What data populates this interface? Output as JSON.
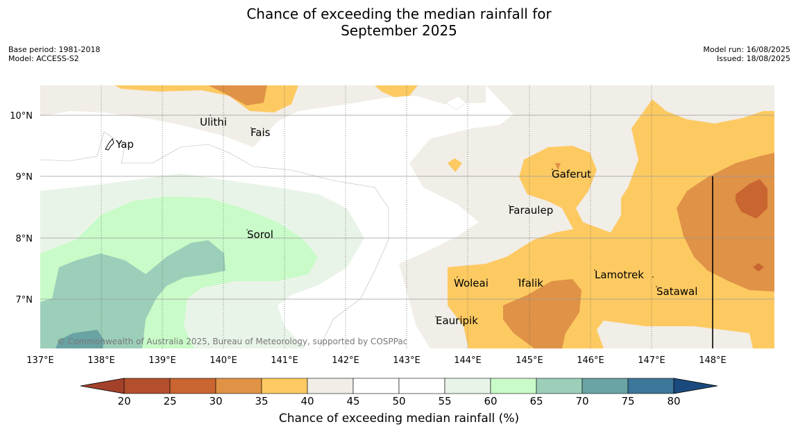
{
  "title_line1": "Chance of exceeding the median rainfall for",
  "title_line2": "September 2025",
  "meta": {
    "base_period": "Base period: 1981-2018",
    "model": "Model: ACCESS-S2",
    "model_run": "Model run: 16/08/2025",
    "issued": "Issued: 18/08/2025"
  },
  "copyright": "© Commonwealth of Australia 2025, Bureau of Meteorology, supported by COSPPac",
  "axes": {
    "lon_labels": [
      "137°E",
      "138°E",
      "139°E",
      "140°E",
      "141°E",
      "142°E",
      "143°E",
      "144°E",
      "145°E",
      "146°E",
      "147°E",
      "148°E"
    ],
    "lat_labels": [
      "10°N",
      "9°N",
      "8°N",
      "7°N"
    ]
  },
  "places": [
    "Ulithi",
    "Fais",
    "Yap",
    "Gaferut",
    "Faraulep",
    "Sorol",
    "Lamotrek",
    "Woleai",
    "Ifalik",
    "Satawal",
    "Eauripik"
  ],
  "colorbar": {
    "label": "Chance of exceeding median rainfall (%)",
    "ticks": [
      "20",
      "25",
      "30",
      "35",
      "40",
      "45",
      "50",
      "55",
      "60",
      "65",
      "70",
      "75",
      "80"
    ],
    "colors": [
      "#a3412a",
      "#b34f2d",
      "#c96530",
      "#e09246",
      "#fdca62",
      "#f1ede7",
      "#ffffff",
      "#ffffff",
      "#e9f4e8",
      "#c9fbc8",
      "#9ccfb9",
      "#6aa3a3",
      "#3c7698",
      "#1a4a7d"
    ]
  }
}
